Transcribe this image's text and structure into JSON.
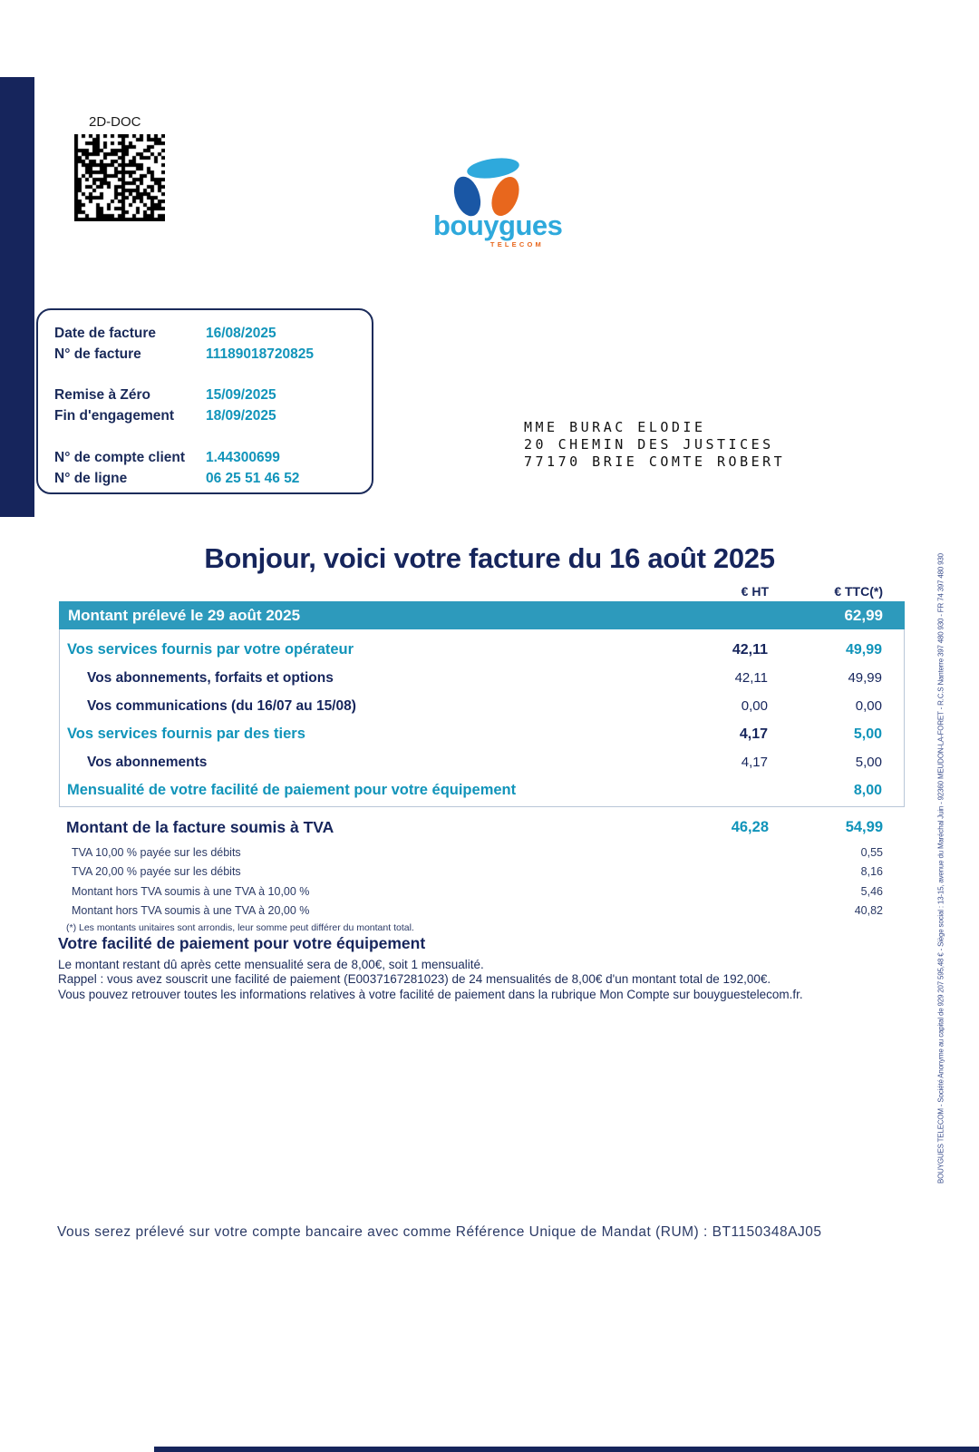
{
  "barcode": {
    "label": "2D-DOC"
  },
  "logo": {
    "brand": "bouygues",
    "telecom": "TELECOM"
  },
  "info_box": {
    "rows": [
      {
        "label": "Date de facture",
        "value": "16/08/2025"
      },
      {
        "label": "N° de facture",
        "value": "11189018720825"
      },
      {
        "label": "Remise à Zéro",
        "value": "15/09/2025"
      },
      {
        "label": "Fin d'engagement",
        "value": "18/09/2025"
      },
      {
        "label": "N° de compte client",
        "value": "1.44300699"
      },
      {
        "label": "N° de ligne",
        "value": "06 25 51 46 52"
      }
    ]
  },
  "address": {
    "line1": "MME BURAC ELODIE",
    "line2": "20 CHEMIN DES JUSTICES",
    "line3": "77170 BRIE COMTE ROBERT"
  },
  "title": "Bonjour, voici votre facture du 16 août 2025",
  "table": {
    "col_ht": "€ HT",
    "col_ttc": "€ TTC(*)",
    "banner": {
      "label": "Montant prélevé le 29 août 2025",
      "ttc": "62,99"
    },
    "rows": [
      {
        "label": "Vos services fournis par votre opérateur",
        "ht": "42,11",
        "ttc": "49,99"
      },
      {
        "label": "Vos abonnements, forfaits et options",
        "ht": "42,11",
        "ttc": "49,99"
      },
      {
        "label": "Vos communications  (du 16/07 au 15/08)",
        "ht": "0,00",
        "ttc": "0,00"
      },
      {
        "label": "Vos services fournis par des tiers",
        "ht": "4,17",
        "ttc": "5,00"
      },
      {
        "label": "Vos abonnements",
        "ht": "4,17",
        "ttc": "5,00"
      },
      {
        "label": "Mensualité de votre facilité de paiement pour votre équipement",
        "ht": "",
        "ttc": "8,00"
      }
    ],
    "summary": {
      "label": "Montant de la facture soumis à TVA",
      "ht": "46,28",
      "ttc": "54,99"
    },
    "tva_rows": [
      {
        "label": "TVA 10,00 % payée sur les débits",
        "ttc": "0,55"
      },
      {
        "label": "TVA 20,00 % payée sur les débits",
        "ttc": "8,16"
      },
      {
        "label": "Montant hors TVA soumis à une TVA à 10,00 %",
        "ttc": "5,46"
      },
      {
        "label": "Montant hors TVA soumis à une TVA à 20,00 %",
        "ttc": "40,82"
      }
    ],
    "footnote": "(*) Les montants unitaires sont arrondis, leur somme peut différer du montant total."
  },
  "facility": {
    "heading": "Votre facilité de paiement pour votre équipement",
    "line1": "Le montant restant dû après cette mensualité sera de 8,00€, soit 1 mensualité.",
    "line2": "Rappel : vous avez souscrit une facilité de paiement (E0037167281023) de 24 mensualités de 8,00€ d'un montant total de 192,00€.",
    "line3": "Vous pouvez retrouver toutes les informations relatives à votre facilité de paiement dans la rubrique Mon Compte sur bouyguestelecom.fr."
  },
  "side_text": "BOUYGUES TELECOM - Société Anonyme au capital de 929 207 595,48 € - Siège social : 13-15, avenue du Maréchal Juin - 92360 MEUDON-LA-FORET - R.C.S Nanterre 397 480 930 - FR 74 397 480 930",
  "mandate_line": "Vous serez prélevé sur votre compte bancaire  avec comme Référence Unique de Mandat (RUM) : BT1150348AJ05",
  "colors": {
    "navy": "#16255c",
    "teal_text": "#1194ba",
    "banner_teal": "#2d9abc",
    "logo_lightblue": "#2ea9dc",
    "logo_darkblue": "#1a57a5",
    "logo_orange": "#e8671d"
  }
}
